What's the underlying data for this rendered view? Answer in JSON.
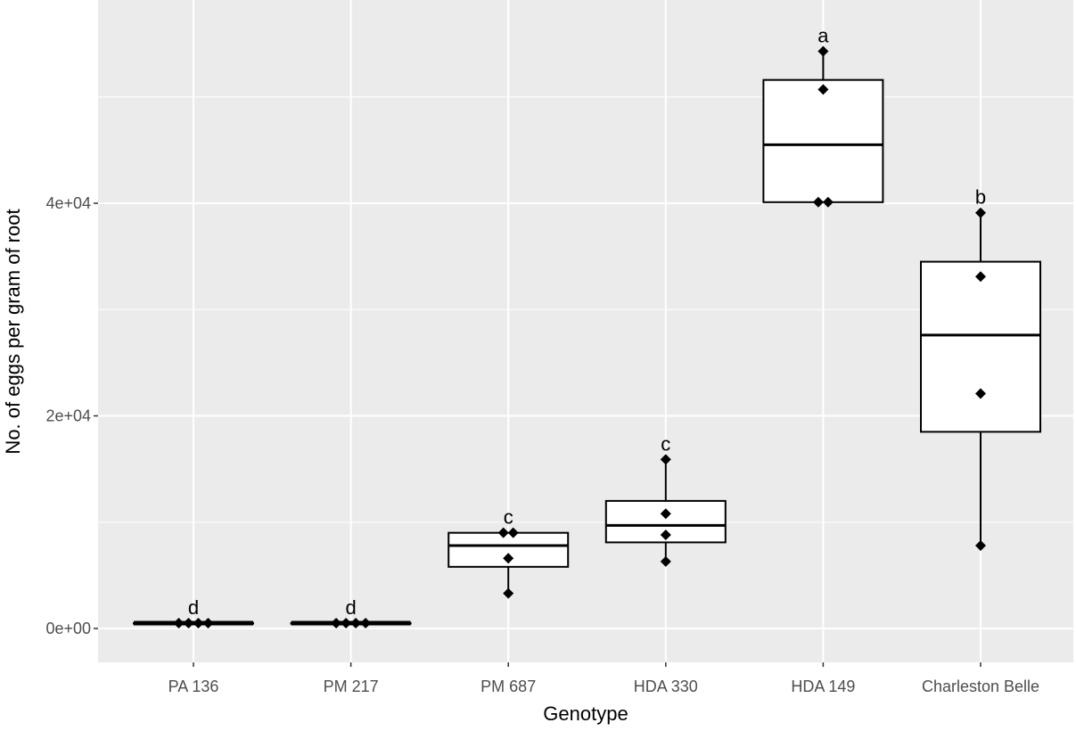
{
  "chart_data": {
    "type": "box",
    "title": "",
    "xlabel": "Genotype",
    "ylabel": "No. of eggs per gram of root",
    "ylim": [
      -3000,
      59000
    ],
    "yticks": [
      0,
      20000,
      40000
    ],
    "ytick_labels": [
      "0e+00",
      "2e+04",
      "4e+04"
    ],
    "grid": true,
    "legend": null,
    "categories": [
      "PA 136",
      "PM 217",
      "PM 687",
      "HDA 330",
      "HDA 149",
      "Charleston Belle"
    ],
    "significance_letters": [
      "d",
      "d",
      "c",
      "c",
      "a",
      "b"
    ],
    "boxes": [
      {
        "name": "PA 136",
        "min": 500,
        "q1": 500,
        "median": 500,
        "q3": 500,
        "max": 500,
        "points": [
          500,
          500,
          500,
          500
        ]
      },
      {
        "name": "PM 217",
        "min": 500,
        "q1": 500,
        "median": 500,
        "q3": 500,
        "max": 500,
        "points": [
          500,
          500,
          500,
          500
        ]
      },
      {
        "name": "PM 687",
        "min": 3300,
        "q1": 5800,
        "median": 7800,
        "q3": 9000,
        "max": 9000,
        "points": [
          9000,
          9000,
          6600,
          3300
        ]
      },
      {
        "name": "HDA 330",
        "min": 6300,
        "q1": 8100,
        "median": 9700,
        "q3": 12000,
        "max": 15900,
        "points": [
          15900,
          10800,
          8800,
          6300
        ]
      },
      {
        "name": "HDA 149",
        "min": 40100,
        "q1": 40100,
        "median": 45500,
        "q3": 51600,
        "max": 54300,
        "points": [
          54300,
          50700,
          40100,
          40100
        ]
      },
      {
        "name": "Charleston Belle",
        "min": 7800,
        "q1": 18500,
        "median": 27600,
        "q3": 34500,
        "max": 39100,
        "points": [
          39100,
          33100,
          22100,
          7800
        ]
      }
    ]
  },
  "colors": {
    "panel_background": "#ebebeb",
    "grid": "#ffffff",
    "box_fill": "#ffffff",
    "box_stroke": "#000000",
    "point": "#000000"
  }
}
